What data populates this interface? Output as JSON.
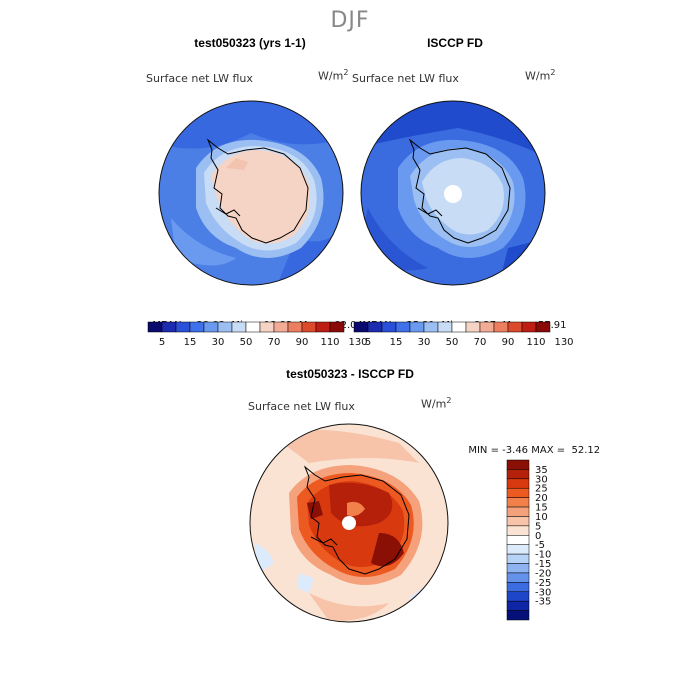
{
  "figure": {
    "title": "DJF",
    "field_label": "Surface net LW flux",
    "units_base": "W/m",
    "units_exp": "2"
  },
  "panels": [
    {
      "title": "test050323 (yrs 1-1)",
      "stats": {
        "mean_label": "MEAN=",
        "mean": "38.83",
        "min_label": "Min=",
        "min": "13.32",
        "max_label": "Max=",
        "max": "82.04"
      }
    },
    {
      "title": "ISCCP FD",
      "stats": {
        "mean_label": "MEAN=",
        "mean": "25.31",
        "min_label": "Min=",
        "min": "8.27",
        "max_label": "Max=",
        "max": "57.91"
      }
    }
  ],
  "top_colorbar": {
    "colors": [
      "#0a0a6e",
      "#1d2bb0",
      "#2a4fd9",
      "#3f71ea",
      "#6a9af0",
      "#9bbff2",
      "#c8dcf5",
      "#ffffff",
      "#f6d4c5",
      "#f2ac95",
      "#ec7f5f",
      "#dc4a2c",
      "#bd1d12",
      "#8a0a0a"
    ],
    "labels": [
      "5",
      "15",
      "30",
      "50",
      "70",
      "90",
      "110",
      "130"
    ]
  },
  "difference": {
    "title": "test050323 - ISCCP FD",
    "min_label": "MIN =",
    "min": "-3.46",
    "max_label": "MAX =",
    "max": "52.12",
    "colorbar_colors_top_to_bottom": [
      "#8a0f04",
      "#b5200a",
      "#d8390f",
      "#ec5a22",
      "#f2804b",
      "#f5a27c",
      "#f7c4aa",
      "#fbe3d4",
      "#ffffff",
      "#dcebfb",
      "#b6d2f6",
      "#8db3f1",
      "#6592ea",
      "#3c6de0",
      "#1e46c9",
      "#0e25a6",
      "#06107a"
    ],
    "colorbar_labels_top_to_bottom": [
      "35",
      "30",
      "25",
      "20",
      "15",
      "10",
      "5",
      "0",
      "-5",
      "-10",
      "-15",
      "-20",
      "-25",
      "-30",
      "-35"
    ]
  }
}
